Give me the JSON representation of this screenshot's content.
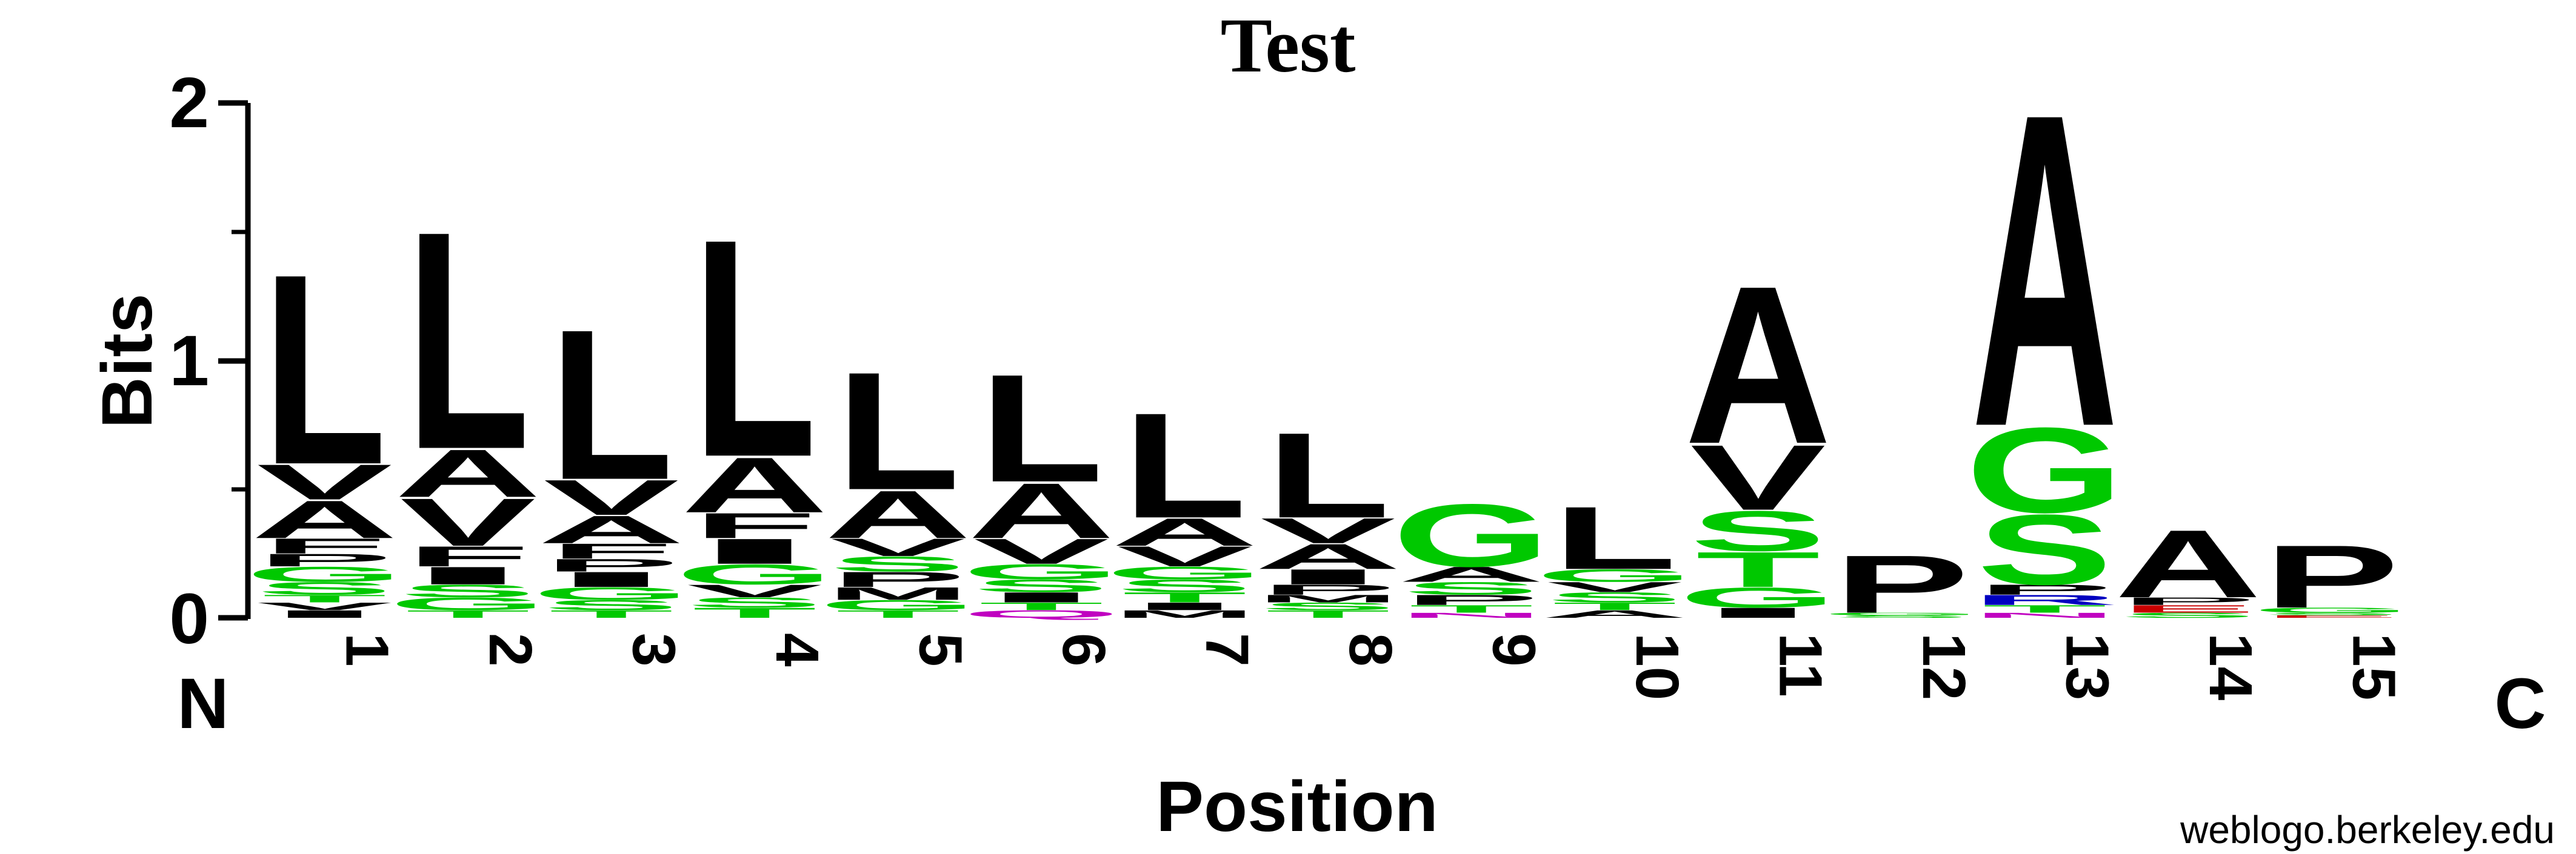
{
  "chart_data": {
    "type": "sequence-logo",
    "title": "Test",
    "xlabel": "Position",
    "ylabel": "Bits",
    "ylim": [
      0,
      2
    ],
    "y_ticks": [
      "0",
      "1",
      "2"
    ],
    "n_terminus_label": "N",
    "c_terminus_label": "C",
    "credit": "weblogo.berkeley.edu",
    "colors": {
      "hydrophobic": "#000000",
      "polar": "#00c800",
      "basic": "#0000c0",
      "acidic": "#c80000",
      "amide": "#c000c0"
    },
    "positions": [
      {
        "label": "1",
        "total_bits": 1.36,
        "letters": [
          {
            "letter": "I",
            "bits": 0.03,
            "group": "hydrophobic"
          },
          {
            "letter": "V",
            "bits": 0.03,
            "group": "hydrophobic"
          },
          {
            "letter": "T",
            "bits": 0.03,
            "group": "polar"
          },
          {
            "letter": "S",
            "bits": 0.05,
            "group": "polar"
          },
          {
            "letter": "G",
            "bits": 0.06,
            "group": "polar"
          },
          {
            "letter": "P",
            "bits": 0.05,
            "group": "hydrophobic"
          },
          {
            "letter": "F",
            "bits": 0.06,
            "group": "hydrophobic"
          },
          {
            "letter": "A",
            "bits": 0.15,
            "group": "hydrophobic"
          },
          {
            "letter": "V",
            "bits": 0.14,
            "group": "hydrophobic"
          },
          {
            "letter": "L",
            "bits": 0.76,
            "group": "hydrophobic"
          }
        ]
      },
      {
        "label": "2",
        "total_bits": 1.53,
        "letters": [
          {
            "letter": "T",
            "bits": 0.03,
            "group": "polar"
          },
          {
            "letter": "G",
            "bits": 0.05,
            "group": "polar"
          },
          {
            "letter": "S",
            "bits": 0.05,
            "group": "polar"
          },
          {
            "letter": "I",
            "bits": 0.07,
            "group": "hydrophobic"
          },
          {
            "letter": "F",
            "bits": 0.08,
            "group": "hydrophobic"
          },
          {
            "letter": "V",
            "bits": 0.19,
            "group": "hydrophobic"
          },
          {
            "letter": "A",
            "bits": 0.19,
            "group": "hydrophobic"
          },
          {
            "letter": "L",
            "bits": 0.82,
            "group": "hydrophobic"
          }
        ]
      },
      {
        "label": "3",
        "total_bits": 1.14,
        "letters": [
          {
            "letter": "T",
            "bits": 0.03,
            "group": "polar"
          },
          {
            "letter": "S",
            "bits": 0.04,
            "group": "polar"
          },
          {
            "letter": "G",
            "bits": 0.05,
            "group": "polar"
          },
          {
            "letter": "I",
            "bits": 0.06,
            "group": "hydrophobic"
          },
          {
            "letter": "P",
            "bits": 0.05,
            "group": "hydrophobic"
          },
          {
            "letter": "F",
            "bits": 0.06,
            "group": "hydrophobic"
          },
          {
            "letter": "A",
            "bits": 0.11,
            "group": "hydrophobic"
          },
          {
            "letter": "V",
            "bits": 0.14,
            "group": "hydrophobic"
          },
          {
            "letter": "L",
            "bits": 0.56,
            "group": "hydrophobic"
          }
        ]
      },
      {
        "label": "4",
        "total_bits": 1.5,
        "letters": [
          {
            "letter": "T",
            "bits": 0.04,
            "group": "polar"
          },
          {
            "letter": "S",
            "bits": 0.04,
            "group": "polar"
          },
          {
            "letter": "V",
            "bits": 0.05,
            "group": "hydrophobic"
          },
          {
            "letter": "G",
            "bits": 0.08,
            "group": "polar"
          },
          {
            "letter": "I",
            "bits": 0.1,
            "group": "hydrophobic"
          },
          {
            "letter": "F",
            "bits": 0.1,
            "group": "hydrophobic"
          },
          {
            "letter": "A",
            "bits": 0.22,
            "group": "hydrophobic"
          },
          {
            "letter": "L",
            "bits": 0.66,
            "group": "hydrophobic"
          }
        ]
      },
      {
        "label": "5",
        "total_bits": 0.97,
        "letters": [
          {
            "letter": "T",
            "bits": 0.03,
            "group": "polar"
          },
          {
            "letter": "G",
            "bits": 0.04,
            "group": "polar"
          },
          {
            "letter": "M",
            "bits": 0.05,
            "group": "hydrophobic"
          },
          {
            "letter": "P",
            "bits": 0.06,
            "group": "hydrophobic"
          },
          {
            "letter": "S",
            "bits": 0.06,
            "group": "polar"
          },
          {
            "letter": "V",
            "bits": 0.07,
            "group": "hydrophobic"
          },
          {
            "letter": "A",
            "bits": 0.19,
            "group": "hydrophobic"
          },
          {
            "letter": "L",
            "bits": 0.27,
            "group": "hydrophobic"
          }
        ]
      },
      {
        "label": "6",
        "total_bits": 0.96,
        "letters": [
          {
            "letter": "Q",
            "bits": 0.03,
            "group": "amide"
          },
          {
            "letter": "T",
            "bits": 0.03,
            "group": "polar"
          },
          {
            "letter": "I",
            "bits": 0.04,
            "group": "hydrophobic"
          },
          {
            "letter": "S",
            "bits": 0.05,
            "group": "polar"
          },
          {
            "letter": "G",
            "bits": 0.06,
            "group": "polar"
          },
          {
            "letter": "V",
            "bits": 0.1,
            "group": "hydrophobic"
          },
          {
            "letter": "A",
            "bits": 0.22,
            "group": "hydrophobic"
          },
          {
            "letter": "L",
            "bits": 0.24,
            "group": "hydrophobic"
          }
        ]
      },
      {
        "label": "7",
        "total_bits": 0.81,
        "letters": [
          {
            "letter": "M",
            "bits": 0.03,
            "group": "hydrophobic"
          },
          {
            "letter": "I",
            "bits": 0.03,
            "group": "hydrophobic"
          },
          {
            "letter": "T",
            "bits": 0.04,
            "group": "polar"
          },
          {
            "letter": "S",
            "bits": 0.05,
            "group": "polar"
          },
          {
            "letter": "G",
            "bits": 0.05,
            "group": "polar"
          },
          {
            "letter": "V",
            "bits": 0.08,
            "group": "hydrophobic"
          },
          {
            "letter": "A",
            "bits": 0.11,
            "group": "hydrophobic"
          },
          {
            "letter": "L",
            "bits": 0.2,
            "group": "hydrophobic"
          }
        ]
      },
      {
        "label": "8",
        "total_bits": 0.73,
        "letters": [
          {
            "letter": "T",
            "bits": 0.03,
            "group": "polar"
          },
          {
            "letter": "S",
            "bits": 0.03,
            "group": "polar"
          },
          {
            "letter": "M",
            "bits": 0.03,
            "group": "hydrophobic"
          },
          {
            "letter": "P",
            "bits": 0.04,
            "group": "hydrophobic"
          },
          {
            "letter": "I",
            "bits": 0.06,
            "group": "hydrophobic"
          },
          {
            "letter": "A",
            "bits": 0.1,
            "group": "hydrophobic"
          },
          {
            "letter": "V",
            "bits": 0.1,
            "group": "hydrophobic"
          },
          {
            "letter": "L",
            "bits": 0.12,
            "group": "hydrophobic"
          }
        ]
      },
      {
        "label": "9",
        "total_bits": 0.45,
        "letters": [
          {
            "letter": "N",
            "bits": 0.02,
            "group": "amide"
          },
          {
            "letter": "T",
            "bits": 0.03,
            "group": "polar"
          },
          {
            "letter": "P",
            "bits": 0.04,
            "group": "hydrophobic"
          },
          {
            "letter": "S",
            "bits": 0.05,
            "group": "polar"
          },
          {
            "letter": "A",
            "bits": 0.06,
            "group": "hydrophobic"
          },
          {
            "letter": "G",
            "bits": 0.06,
            "group": "polar"
          }
        ]
      },
      {
        "label": "10",
        "total_bits": 0.44,
        "letters": [
          {
            "letter": "A",
            "bits": 0.03,
            "group": "hydrophobic"
          },
          {
            "letter": "T",
            "bits": 0.03,
            "group": "polar"
          },
          {
            "letter": "S",
            "bits": 0.04,
            "group": "polar"
          },
          {
            "letter": "V",
            "bits": 0.04,
            "group": "hydrophobic"
          },
          {
            "letter": "G",
            "bits": 0.05,
            "group": "polar"
          },
          {
            "letter": "L",
            "bits": 0.07,
            "group": "hydrophobic"
          }
        ]
      },
      {
        "label": "11",
        "total_bits": 1.31,
        "letters": [
          {
            "letter": "I",
            "bits": 0.04,
            "group": "hydrophobic"
          },
          {
            "letter": "G",
            "bits": 0.08,
            "group": "polar"
          },
          {
            "letter": "T",
            "bits": 0.14,
            "group": "polar"
          },
          {
            "letter": "S",
            "bits": 0.16,
            "group": "polar"
          },
          {
            "letter": "V",
            "bits": 0.26,
            "group": "hydrophobic"
          },
          {
            "letter": "A",
            "bits": 0.39,
            "group": "hydrophobic"
          }
        ]
      },
      {
        "label": "12",
        "total_bits": 0.25,
        "letters": [
          {
            "letter": "S",
            "bits": 0.01,
            "group": "polar"
          },
          {
            "letter": "G",
            "bits": 0.01,
            "group": "polar"
          },
          {
            "letter": "P",
            "bits": 0.01,
            "group": "hydrophobic"
          }
        ]
      },
      {
        "label": "13",
        "total_bits": 2.0,
        "letters": [
          {
            "letter": "N",
            "bits": 0.02,
            "group": "amide"
          },
          {
            "letter": "T",
            "bits": 0.03,
            "group": "polar"
          },
          {
            "letter": "R",
            "bits": 0.04,
            "group": "basic"
          },
          {
            "letter": "P",
            "bits": 0.04,
            "group": "hydrophobic"
          },
          {
            "letter": "S",
            "bits": 0.28,
            "group": "polar"
          },
          {
            "letter": "G",
            "bits": 0.34,
            "group": "polar"
          },
          {
            "letter": "A",
            "bits": 1.05,
            "group": "hydrophobic"
          }
        ]
      },
      {
        "label": "14",
        "total_bits": 0.35,
        "letters": [
          {
            "letter": "S",
            "bits": 0.02,
            "group": "polar"
          },
          {
            "letter": "E",
            "bits": 0.03,
            "group": "acidic"
          },
          {
            "letter": "P",
            "bits": 0.03,
            "group": "hydrophobic"
          },
          {
            "letter": "A",
            "bits": 0.04,
            "group": "hydrophobic"
          }
        ]
      },
      {
        "label": "15",
        "total_bits": 0.29,
        "letters": [
          {
            "letter": "E",
            "bits": 0.01,
            "group": "acidic"
          },
          {
            "letter": "S",
            "bits": 0.01,
            "group": "polar"
          },
          {
            "letter": "G",
            "bits": 0.02,
            "group": "polar"
          },
          {
            "letter": "P",
            "bits": 0.02,
            "group": "hydrophobic"
          }
        ]
      }
    ]
  }
}
